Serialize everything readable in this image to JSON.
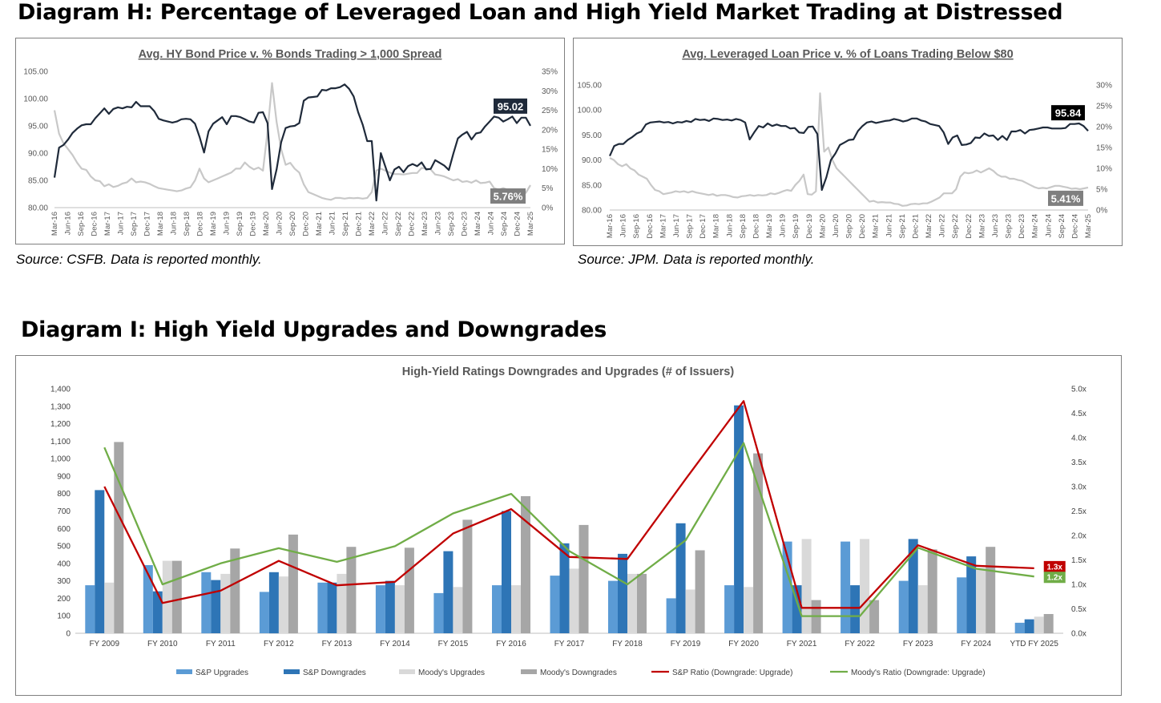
{
  "headings": {
    "diagram_h": "Diagram H: Percentage of Leveraged Loan and High Yield Market Trading at Distressed",
    "diagram_i": "Diagram I: High Yield Upgrades and Downgrades"
  },
  "sources": {
    "left": "Source: CSFB. Data is reported monthly.",
    "right": "Source: JPM. Data is reported monthly."
  },
  "colors": {
    "price_line": "#1f2a3a",
    "pct_line": "#c8c8c8",
    "sp_up": "#5b9bd5",
    "sp_down": "#2e75b6",
    "moody_up": "#d9d9d9",
    "moody_down": "#a6a6a6",
    "sp_ratio": "#c00000",
    "moody_ratio": "#70ad47"
  },
  "chart_data": [
    {
      "type": "line",
      "title": "Avg. HY Bond Price v. % Bonds Trading > 1,000 Spread",
      "y_ticks": [
        "105.00",
        "100.00",
        "95.00",
        "90.00",
        "85.00",
        "80.00"
      ],
      "y2_ticks": [
        "35%",
        "30%",
        "25%",
        "20%",
        "15%",
        "10%",
        "5%",
        "0%"
      ],
      "ylim": [
        80,
        105
      ],
      "y2lim": [
        0,
        35
      ],
      "x_labels": [
        "Mar-16",
        "Jun-16",
        "Sep-16",
        "Dec-16",
        "Mar-17",
        "Jun-17",
        "Sep-17",
        "Dec-17",
        "Mar-18",
        "Jun-18",
        "Sep-18",
        "Dec-18",
        "Mar-19",
        "Jun-19",
        "Sep-19",
        "Dec-19",
        "Mar-20",
        "Jun-20",
        "Sep-20",
        "Dec-20",
        "Mar-21",
        "Jun-21",
        "Sep-21",
        "Dec-21",
        "Mar-22",
        "Jun-22",
        "Sep-22",
        "Dec-22",
        "Mar-23",
        "Jun-23",
        "Sep-23",
        "Dec-23",
        "Mar-24",
        "Jun-24",
        "Sep-24",
        "Dec-24",
        "Mar-25"
      ],
      "series": [
        {
          "name_role": "price",
          "values": [
            85.5,
            91,
            91.5,
            92.5,
            93.7,
            94.5,
            95.1,
            95.3,
            95.3,
            96.4,
            97.3,
            98.2,
            97.2,
            98.1,
            98.4,
            98.2,
            98.5,
            98.4,
            99.4,
            98.6,
            98.6,
            98.6,
            97.7,
            96.3,
            96,
            95.8,
            95.6,
            95.8,
            96.2,
            96.3,
            96.2,
            95.4,
            93,
            90.1,
            94,
            95.4,
            96,
            96.6,
            95.3,
            96.8,
            96.8,
            96.6,
            96.2,
            95.8,
            95.6,
            97.4,
            97.5,
            95.5,
            83.4,
            87,
            92,
            94.6,
            94.9,
            95,
            95.5,
            99.6,
            100.2,
            100.3,
            100.4,
            101.6,
            101.5,
            101.9,
            101.9,
            102.1,
            102.6,
            101.8,
            100.4,
            97.5,
            95.2,
            92.2,
            92.2,
            81.3,
            90,
            87.5,
            85,
            87,
            87.5,
            86.5,
            87.6,
            88,
            87.6,
            88.3,
            87,
            87.1,
            88.7,
            88.2,
            87.7,
            86.9,
            89.9,
            92.7,
            93.4,
            93.9,
            92.5,
            93.6,
            93.8,
            94.9,
            95.8,
            96.7,
            96.5,
            95.8,
            96.2,
            96.7,
            95.5,
            96.5,
            96.5,
            95.02
          ],
          "label": "95.02"
        },
        {
          "name_role": "pct",
          "values": [
            25,
            19,
            16.5,
            15,
            13.5,
            11.5,
            10,
            9.7,
            8,
            7,
            6.8,
            5.5,
            6,
            5.3,
            5.6,
            6.2,
            6.5,
            7.5,
            6.5,
            6.7,
            6.5,
            6.1,
            5.5,
            5,
            4.8,
            4.6,
            4.4,
            4.2,
            4.4,
            4.9,
            5.2,
            7,
            10,
            7.5,
            6.5,
            7,
            7.5,
            8,
            8.5,
            9,
            10,
            10,
            11.6,
            10.5,
            9.8,
            10.3,
            9.5,
            19.5,
            32,
            22,
            15,
            11,
            11.5,
            10,
            9,
            6,
            4,
            3.5,
            3,
            2.5,
            2.2,
            2,
            2.5,
            2.5,
            2.3,
            2.5,
            2.4,
            2.5,
            2.3,
            2.5,
            4,
            9.5,
            10,
            9.5,
            9,
            8.6,
            8.6,
            8.5,
            8.7,
            8.9,
            8.9,
            10.2,
            10,
            9.8,
            8.5,
            8.3,
            8,
            7.5,
            7,
            7.3,
            6.6,
            6.8,
            6.4,
            7,
            6.3,
            6.4,
            6.7,
            5,
            4.6,
            5,
            4.6,
            3.6,
            3.7,
            3.5,
            3.8,
            5.76
          ],
          "label": "5.76%"
        }
      ]
    },
    {
      "type": "line",
      "title": "Avg. Leveraged Loan Price v. % of Loans Trading Below $80",
      "y_ticks": [
        "105.00",
        "100.00",
        "95.00",
        "90.00",
        "85.00",
        "80.00"
      ],
      "y2_ticks": [
        "30%",
        "25%",
        "20%",
        "15%",
        "10%",
        "5%",
        "0%"
      ],
      "ylim": [
        80,
        105
      ],
      "y2lim": [
        0,
        30
      ],
      "x_labels": [
        "Mar-16",
        "Jun-16",
        "Sep-16",
        "Dec-16",
        "Mar-17",
        "Jun-17",
        "Sep-17",
        "Dec-17",
        "Mar-18",
        "Jun-18",
        "Sep-18",
        "Dec-18",
        "Mar-19",
        "Jun-19",
        "Sep-19",
        "Dec-19",
        "Mar-20",
        "Jun-20",
        "Sep-20",
        "Dec-20",
        "Mar-21",
        "Jun-21",
        "Sep-21",
        "Dec-21",
        "Mar-22",
        "Jun-22",
        "Sep-22",
        "Dec-22",
        "Mar-23",
        "Jun-23",
        "Sep-23",
        "Dec-23",
        "Mar-24",
        "Jun-24",
        "Sep-24",
        "Dec-24",
        "Mar-25"
      ],
      "series": [
        {
          "name_role": "price",
          "values": [
            90.8,
            92.8,
            93.2,
            93.2,
            94,
            94.6,
            95.3,
            95.7,
            97.1,
            97.5,
            97.6,
            97.7,
            97.5,
            97.6,
            97.3,
            97.6,
            97.5,
            97.8,
            97.6,
            98.2,
            98,
            98.1,
            97.8,
            98.3,
            98.2,
            98,
            98.1,
            97.9,
            98.2,
            98,
            97.5,
            94.1,
            95.5,
            96.8,
            96.5,
            97.3,
            96.8,
            97.1,
            96.8,
            96.8,
            96.3,
            96.4,
            95.5,
            95.4,
            96.6,
            96.7,
            95.2,
            84,
            86.5,
            90,
            91.3,
            93,
            93.5,
            94,
            94.1,
            95.8,
            96.8,
            97.5,
            97.7,
            97.4,
            97.6,
            97.8,
            97.9,
            98.2,
            98,
            97.7,
            97.9,
            98.3,
            98.3,
            97.9,
            97.7,
            97.2,
            97,
            96.8,
            95.5,
            93.2,
            94.5,
            94.9,
            93,
            93.1,
            93.4,
            94.5,
            94.4,
            95.3,
            94.8,
            94.9,
            94,
            94.8,
            94,
            95.7,
            95.7,
            96,
            95.3,
            96,
            96.1,
            96.3,
            96.5,
            96.5,
            96.3,
            96.3,
            96.3,
            96.4,
            97.2,
            97.2,
            97.3,
            96.8,
            95.84
          ],
          "label": "95.84"
        },
        {
          "name_role": "pct",
          "values": [
            12.5,
            12,
            11,
            10.5,
            11,
            10,
            9.5,
            8.5,
            8,
            7.5,
            6,
            4.8,
            4.5,
            3.8,
            4,
            4.2,
            4.5,
            4.3,
            4.5,
            4.2,
            4.5,
            4.2,
            4,
            3.8,
            3.6,
            3.8,
            3.4,
            3.6,
            3.6,
            3.4,
            3.1,
            3,
            3.3,
            3.4,
            3.6,
            3.4,
            3.6,
            3.5,
            3.6,
            4,
            3.8,
            4.1,
            4.5,
            4.8,
            4.6,
            6,
            7,
            8.5,
            3.8,
            3.7,
            4.5,
            28,
            14,
            15,
            12,
            10,
            9,
            8,
            7,
            6,
            5,
            4,
            3,
            2,
            2.2,
            1.8,
            1.9,
            1.8,
            1.8,
            1.5,
            1.4,
            1,
            1.1,
            1.4,
            1.5,
            1.4,
            1.6,
            1.6,
            2,
            2.5,
            3,
            4,
            4,
            4,
            5,
            8,
            9,
            8.8,
            9,
            9.5,
            9,
            9.5,
            10,
            9.4,
            8.5,
            8,
            8,
            7.5,
            7.5,
            7.2,
            7,
            6.5,
            6,
            5.5,
            5.2,
            5.3,
            5.2,
            5.5,
            5.8,
            5.8,
            5.6,
            5.4,
            5.1,
            5.2,
            5,
            5.2,
            5.41
          ],
          "label": "5.41%"
        }
      ]
    },
    {
      "type": "bar",
      "title": "High-Yield Ratings Downgrades and Upgrades (# of Issuers)",
      "categories": [
        "FY 2009",
        "FY 2010",
        "FY 2011",
        "FY 2012",
        "FY 2013",
        "FY 2014",
        "FY 2015",
        "FY 2016",
        "FY 2017",
        "FY 2018",
        "FY 2019",
        "FY 2020",
        "FY 2021",
        "FY 2022",
        "FY 2023",
        "FY 2024",
        "YTD FY 2025"
      ],
      "y_ticks": [
        "1,400",
        "1,300",
        "1,200",
        "1,100",
        "1,000",
        "900",
        "800",
        "700",
        "600",
        "500",
        "400",
        "300",
        "200",
        "100",
        "0"
      ],
      "y2_ticks": [
        "5.0x",
        "4.5x",
        "4.0x",
        "3.5x",
        "3.0x",
        "2.5x",
        "2.0x",
        "1.5x",
        "1.0x",
        "0.5x",
        "0.0x"
      ],
      "ylim": [
        0,
        1400
      ],
      "y2lim": [
        0,
        5
      ],
      "series": [
        {
          "name": "S&P Upgrades",
          "kind": "bar",
          "color_key": "sp_up",
          "values": [
            275,
            390,
            350,
            237,
            290,
            275,
            230,
            275,
            330,
            300,
            200,
            275,
            525,
            525,
            300,
            320,
            60
          ]
        },
        {
          "name": "S&P Downgrades",
          "kind": "bar",
          "color_key": "sp_down",
          "values": [
            820,
            240,
            305,
            350,
            290,
            300,
            470,
            700,
            515,
            455,
            630,
            1305,
            275,
            275,
            540,
            440,
            80
          ]
        },
        {
          "name": "Moody's Upgrades",
          "kind": "bar",
          "color_key": "moody_up",
          "values": [
            290,
            415,
            340,
            325,
            340,
            275,
            265,
            275,
            370,
            340,
            250,
            265,
            540,
            540,
            275,
            375,
            95
          ]
        },
        {
          "name": "Moody's Downgrades",
          "kind": "bar",
          "color_key": "moody_down",
          "values": [
            1095,
            415,
            485,
            565,
            495,
            490,
            650,
            785,
            620,
            340,
            475,
            1030,
            190,
            190,
            480,
            495,
            110
          ]
        },
        {
          "name": "S&P Ratio (Downgrade: Upgrade)",
          "kind": "line",
          "color_key": "sp_ratio",
          "axis": "right",
          "values": [
            3.0,
            0.62,
            0.87,
            1.48,
            0.98,
            1.05,
            2.04,
            2.54,
            1.56,
            1.52,
            3.15,
            4.75,
            0.52,
            0.52,
            1.8,
            1.38,
            1.33
          ]
        },
        {
          "name": "Moody's Ratio (Downgrade: Upgrade)",
          "kind": "line",
          "color_key": "moody_ratio",
          "axis": "right",
          "values": [
            3.8,
            1.0,
            1.43,
            1.74,
            1.46,
            1.78,
            2.45,
            2.85,
            1.68,
            1.0,
            1.9,
            3.89,
            0.35,
            0.35,
            1.75,
            1.32,
            1.16
          ]
        }
      ],
      "end_labels": {
        "sp_ratio": "1.3x",
        "moody_ratio": "1.2x"
      }
    }
  ]
}
